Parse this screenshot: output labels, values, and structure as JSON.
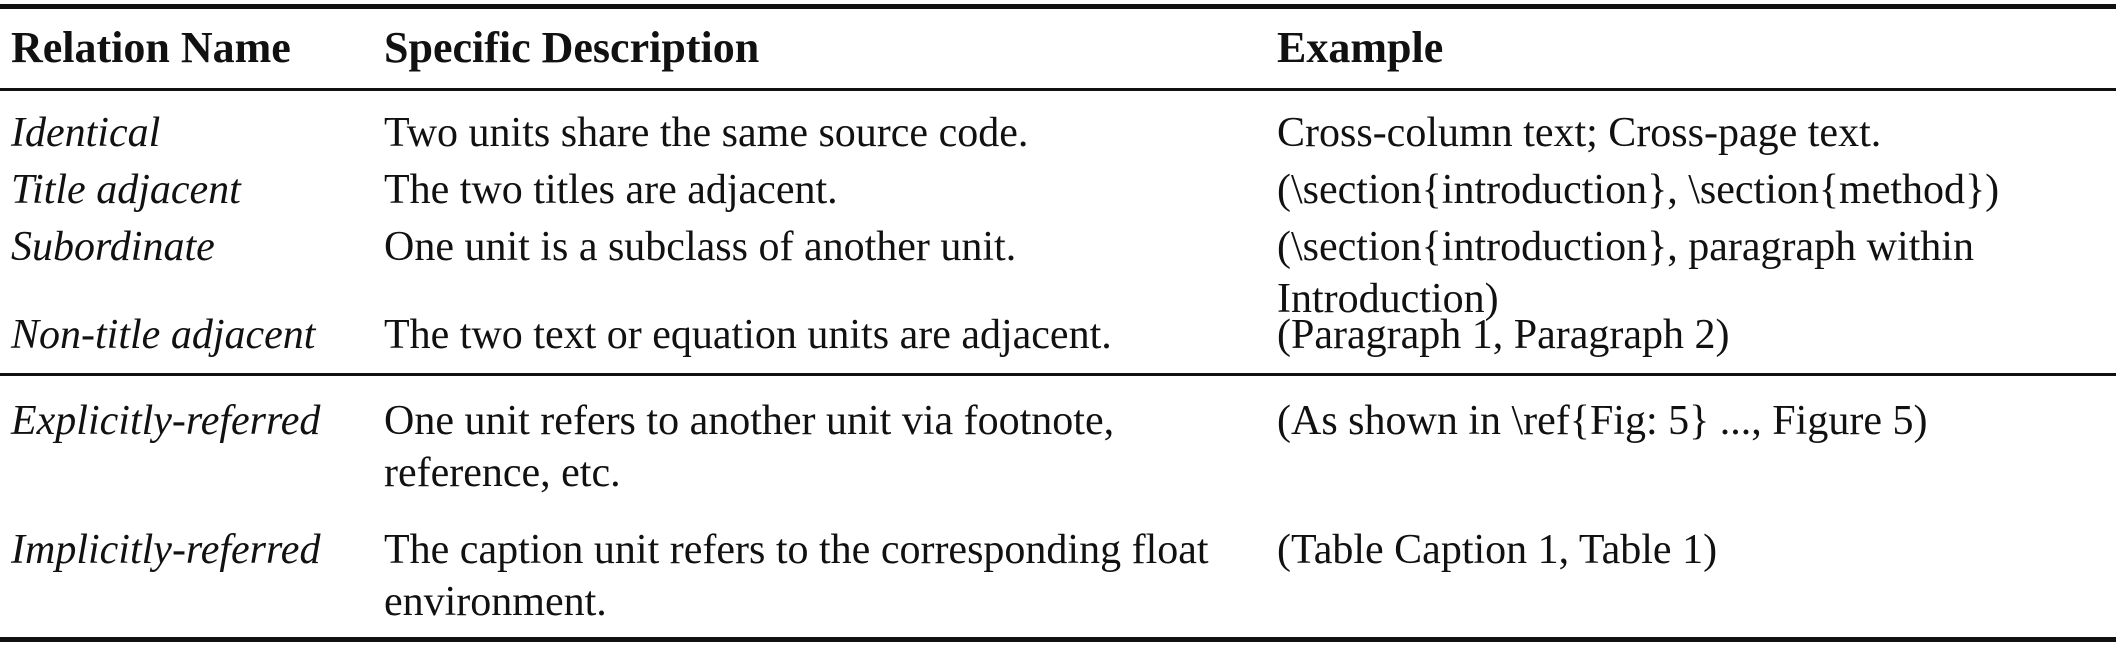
{
  "table": {
    "headers": {
      "relation_name": "Relation Name",
      "specific_description": "Specific Description",
      "example": "Example"
    },
    "rows": [
      {
        "name": "Identical",
        "description": "Two units share the same source code.",
        "example": "Cross-column text; Cross-page text."
      },
      {
        "name": "Title adjacent",
        "description": "The two titles are adjacent.",
        "example": "(\\section{introduction}, \\section{method})"
      },
      {
        "name": "Subordinate",
        "description": "One unit is a subclass of another unit.",
        "example": "(\\section{introduction}, paragraph within Introduction)"
      },
      {
        "name": "Non-title adjacent",
        "description": "The two text or equation units are adjacent.",
        "example": "(Paragraph 1, Paragraph 2)"
      },
      {
        "name": "Explicitly-referred",
        "description": "One unit refers to another unit via footnote, reference, etc.",
        "example": "(As shown in \\ref{Fig: 5} ..., Figure 5)"
      },
      {
        "name": "Implicitly-referred",
        "description": "The caption unit refers to the corresponding float environment.",
        "example": "(Table Caption 1, Table 1)"
      }
    ]
  }
}
